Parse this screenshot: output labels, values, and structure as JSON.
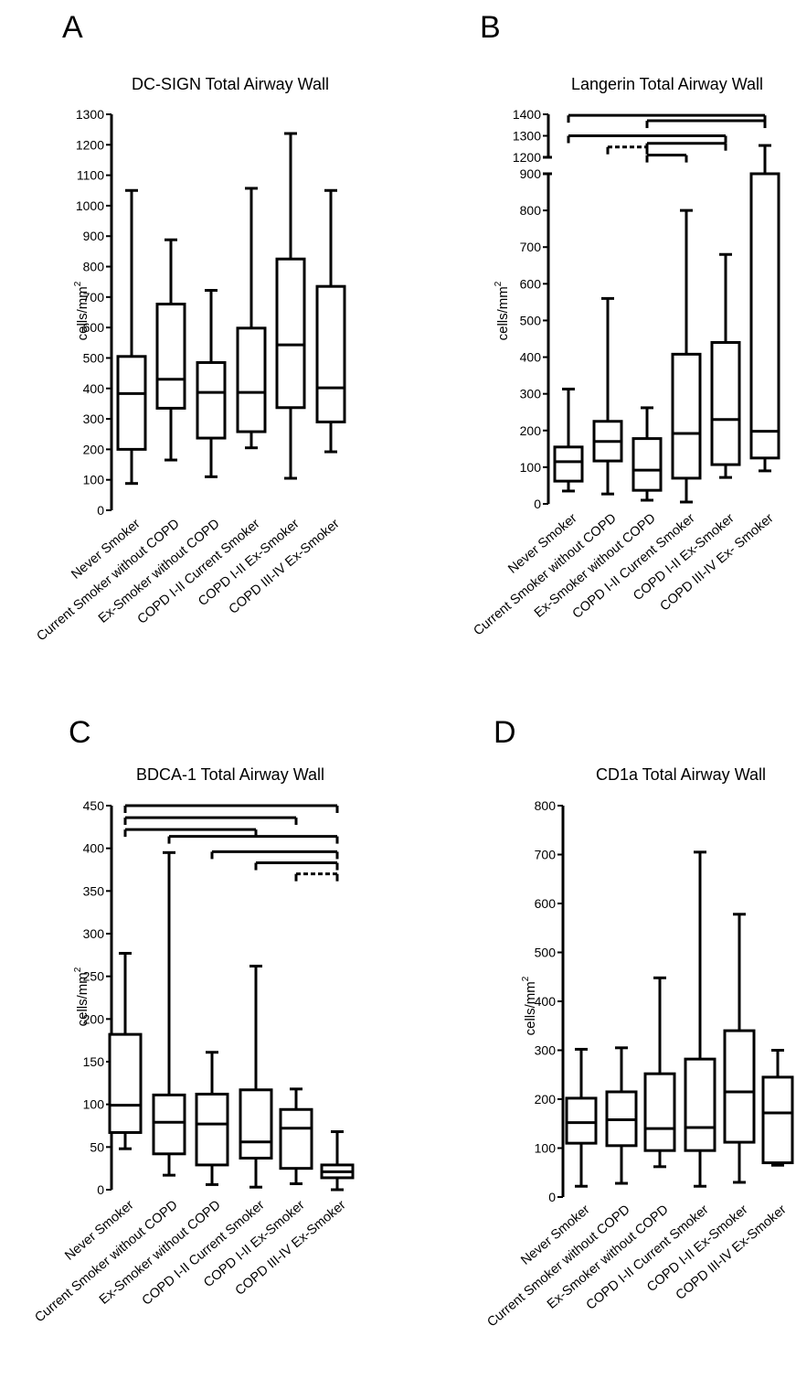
{
  "chart_data": [
    {
      "panel": "A",
      "type": "box",
      "title": "DC-SIGN Total Airway Wall",
      "ylabel": "cells/mm",
      "ylabel_sup": "2",
      "ylim": [
        0,
        1300
      ],
      "yticks": [
        0,
        100,
        200,
        300,
        400,
        500,
        600,
        700,
        800,
        900,
        1000,
        1100,
        1200,
        1300
      ],
      "categories": [
        "Never Smoker",
        "Current Smoker without COPD",
        "Ex-Smoker without COPD",
        "COPD I-II Current Smoker",
        "COPD I-II Ex-Smoker",
        "COPD III-IV Ex-Smoker"
      ],
      "boxes": [
        {
          "min": 88,
          "q1": 200,
          "median": 383,
          "q3": 505,
          "max": 1050
        },
        {
          "min": 165,
          "q1": 335,
          "median": 430,
          "q3": 677,
          "max": 888
        },
        {
          "min": 110,
          "q1": 237,
          "median": 387,
          "q3": 485,
          "max": 722
        },
        {
          "min": 205,
          "q1": 258,
          "median": 387,
          "q3": 598,
          "max": 1057
        },
        {
          "min": 105,
          "q1": 337,
          "median": 543,
          "q3": 825,
          "max": 1237
        },
        {
          "min": 192,
          "q1": 290,
          "median": 402,
          "q3": 735,
          "max": 1050
        }
      ],
      "significance": []
    },
    {
      "panel": "B",
      "type": "box",
      "title": "Langerin Total Airway Wall",
      "ylabel": "cells/mm",
      "ylabel_sup": "2",
      "ylim": [
        0,
        1400
      ],
      "axis_break": [
        900,
        1200
      ],
      "yticks": [
        0,
        100,
        200,
        300,
        400,
        500,
        600,
        700,
        800,
        900,
        1200,
        1300,
        1400
      ],
      "categories": [
        "Never Smoker",
        "Current Smoker without COPD",
        "Ex-Smoker without COPD",
        "COPD I-II Current Smoker",
        "COPD I-II Ex-Smoker",
        "COPD III-IV Ex- Smoker"
      ],
      "boxes": [
        {
          "min": 35,
          "q1": 62,
          "median": 115,
          "q3": 155,
          "max": 313
        },
        {
          "min": 27,
          "q1": 117,
          "median": 170,
          "q3": 225,
          "max": 560
        },
        {
          "min": 10,
          "q1": 37,
          "median": 92,
          "q3": 178,
          "max": 262
        },
        {
          "min": 5,
          "q1": 70,
          "median": 192,
          "q3": 408,
          "max": 800
        },
        {
          "min": 72,
          "q1": 107,
          "median": 230,
          "q3": 440,
          "max": 680
        },
        {
          "min": 90,
          "q1": 125,
          "median": 198,
          "q3": 900,
          "max": 1255
        }
      ],
      "significance": [
        {
          "from": 1,
          "to": 6,
          "level": 1395,
          "dashed": false
        },
        {
          "from": 3,
          "to": 6,
          "level": 1370,
          "dashed": false
        },
        {
          "from": 1,
          "to": 5,
          "level": 1300,
          "dashed": false
        },
        {
          "from": 3,
          "to": 5,
          "level": 1265,
          "dashed": false
        },
        {
          "from": 2,
          "to": 3,
          "level": 1248,
          "dashed": true
        },
        {
          "from": 3,
          "to": 4,
          "level": 1210,
          "dashed": false
        }
      ]
    },
    {
      "panel": "C",
      "type": "box",
      "title": "BDCA-1 Total Airway Wall",
      "ylabel": "cells/mm",
      "ylabel_sup": "2",
      "ylim": [
        0,
        450
      ],
      "yticks": [
        0,
        50,
        100,
        150,
        200,
        250,
        300,
        350,
        400,
        450
      ],
      "categories": [
        "Never Smoker",
        "Current Smoker without COPD",
        "Ex-Smoker without COPD",
        "COPD I-II Current Smoker",
        "COPD I-II Ex-Smoker",
        "COPD III-IV Ex-Smoker"
      ],
      "boxes": [
        {
          "min": 48,
          "q1": 67,
          "median": 99,
          "q3": 182,
          "max": 277
        },
        {
          "min": 17,
          "q1": 42,
          "median": 79,
          "q3": 111,
          "max": 395
        },
        {
          "min": 6,
          "q1": 29,
          "median": 77,
          "q3": 112,
          "max": 161
        },
        {
          "min": 3,
          "q1": 37,
          "median": 56,
          "q3": 117,
          "max": 262
        },
        {
          "min": 7,
          "q1": 25,
          "median": 72,
          "q3": 94,
          "max": 118
        },
        {
          "min": 0,
          "q1": 14,
          "median": 21,
          "q3": 29,
          "max": 68
        }
      ],
      "significance": [
        {
          "from": 1,
          "to": 6,
          "level": 450,
          "dashed": false
        },
        {
          "from": 1,
          "to": 5,
          "level": 436,
          "dashed": false
        },
        {
          "from": 1,
          "to": 4,
          "level": 422,
          "dashed": false
        },
        {
          "from": 2,
          "to": 6,
          "level": 414,
          "dashed": false
        },
        {
          "from": 3,
          "to": 6,
          "level": 396,
          "dashed": false
        },
        {
          "from": 4,
          "to": 6,
          "level": 383,
          "dashed": false
        },
        {
          "from": 5,
          "to": 6,
          "level": 370,
          "dashed": true
        }
      ]
    },
    {
      "panel": "D",
      "type": "box",
      "title": "CD1a Total Airway Wall",
      "ylabel": "cells/mm",
      "ylabel_sup": "2",
      "ylim": [
        0,
        800
      ],
      "yticks": [
        0,
        100,
        200,
        300,
        400,
        500,
        600,
        700,
        800
      ],
      "categories": [
        "Never Smoker",
        "Current Smoker without COPD",
        "Ex-Smoker without COPD",
        "COPD I-II Current Smoker",
        "COPD I-II Ex-Smoker",
        "COPD III-IV Ex-Smoker"
      ],
      "boxes": [
        {
          "min": 22,
          "q1": 110,
          "median": 152,
          "q3": 202,
          "max": 302
        },
        {
          "min": 28,
          "q1": 105,
          "median": 158,
          "q3": 215,
          "max": 305
        },
        {
          "min": 62,
          "q1": 95,
          "median": 140,
          "q3": 252,
          "max": 448
        },
        {
          "min": 22,
          "q1": 95,
          "median": 142,
          "q3": 282,
          "max": 705
        },
        {
          "min": 30,
          "q1": 112,
          "median": 215,
          "q3": 340,
          "max": 578
        },
        {
          "min": 65,
          "q1": 70,
          "median": 172,
          "q3": 245,
          "max": 300
        }
      ],
      "significance": []
    }
  ]
}
